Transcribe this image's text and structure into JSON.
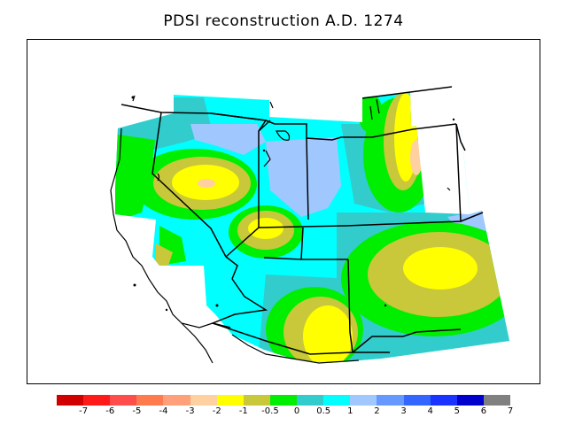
{
  "title": "PDSI reconstruction A.D. 1274",
  "legend": {
    "colors": [
      "#d00000",
      "#ff1a1a",
      "#ff4d4d",
      "#ff7a4d",
      "#ffa07a",
      "#ffd0a0",
      "#ffff00",
      "#c8c83a",
      "#00ee00",
      "#33cccc",
      "#00ffff",
      "#a0c8ff",
      "#6699ff",
      "#3366ff",
      "#1a33ff",
      "#0000cc",
      "#808080"
    ],
    "labels": [
      "-7",
      "-6",
      "-5",
      "-4",
      "-3",
      "-2",
      "-1",
      "-0.5",
      "0",
      "0.5",
      "1",
      "2",
      "3",
      "4",
      "5",
      "6",
      "7"
    ]
  },
  "palette": {
    "wet_light_blue": "#a0c8ff",
    "cyan": "#00ffff",
    "teal": "#33cccc",
    "green": "#00ee00",
    "olive": "#c8c83a",
    "yellow": "#ffff00",
    "peach": "#ffd0a0"
  }
}
